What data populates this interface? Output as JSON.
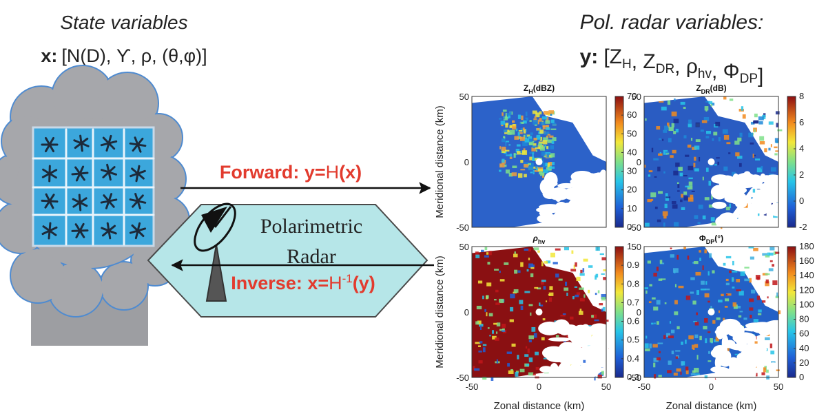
{
  "state_variables": {
    "title": "State variables",
    "vector_name": "x:",
    "vector_body": "[N(D), ϒ, ρ, (θ,φ)]"
  },
  "radar_variables": {
    "title": "Pol. radar variables:",
    "vector_name": "y:",
    "open": "[",
    "separator": ", ",
    "close": "]",
    "items": [
      {
        "base": "Z",
        "sub": "H"
      },
      {
        "base": "Z",
        "sub": "DR"
      },
      {
        "base": "ρ",
        "sub": "hv"
      },
      {
        "base": "Φ",
        "sub": "DP"
      }
    ]
  },
  "forward": {
    "prefix": "Forward: y=",
    "operator": "H",
    "argument": "(x)"
  },
  "inverse": {
    "prefix": "Inverse: x=",
    "operator": "H",
    "superscript": "-1",
    "argument": "(y)"
  },
  "radar": {
    "line1": "Polarimetric",
    "line2": "Radar"
  },
  "axes": {
    "y_label": "Meridional distance (km)",
    "x_label": "Zonal distance (km)",
    "y_ticks": [
      50,
      0,
      -50
    ],
    "x_ticks": [
      -50,
      0,
      50
    ]
  },
  "panels": [
    {
      "title_base": "Z",
      "title_sub": "H",
      "title_unit": "(dBZ)",
      "colorbar_ticks": [
        0,
        10,
        20,
        30,
        40,
        50,
        60,
        70
      ]
    },
    {
      "title_base": "Z",
      "title_sub": "DR",
      "title_unit": "(dB)",
      "colorbar_ticks": [
        -2,
        0,
        2,
        4,
        6,
        8
      ]
    },
    {
      "title_base": "ρ",
      "title_sub": "hv",
      "colorbar_ticks": [
        0.3,
        0.4,
        0.5,
        0.6,
        0.7,
        0.8,
        0.9,
        1
      ]
    },
    {
      "title_base": "Φ",
      "title_sub": "DP",
      "title_unit": "(°)",
      "colorbar_ticks": [
        0,
        20,
        40,
        60,
        80,
        100,
        120,
        140,
        160,
        180
      ]
    }
  ]
}
